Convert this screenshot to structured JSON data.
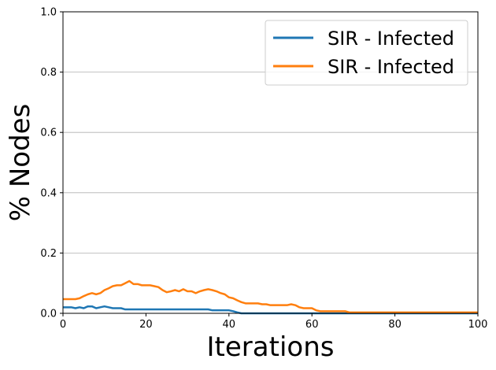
{
  "chart_data": {
    "type": "line",
    "title": "",
    "xlabel": "Iterations",
    "ylabel": "% Nodes",
    "xlim": [
      0,
      100
    ],
    "ylim": [
      0,
      1.0
    ],
    "xticks": [
      "0",
      "20",
      "40",
      "60",
      "80",
      "100"
    ],
    "yticks": [
      "0.0",
      "0.2",
      "0.4",
      "0.6",
      "0.8",
      "1.0"
    ],
    "grid": "horizontal",
    "legend_position": "top-right",
    "colors": {
      "series_1": "#1f77b4",
      "series_2": "#ff7f0e",
      "grid": "#b0b0b0"
    },
    "x": [
      0,
      1,
      2,
      3,
      4,
      5,
      6,
      7,
      8,
      9,
      10,
      11,
      12,
      13,
      14,
      15,
      16,
      17,
      18,
      19,
      20,
      21,
      22,
      23,
      24,
      25,
      26,
      27,
      28,
      29,
      30,
      31,
      32,
      33,
      34,
      35,
      36,
      37,
      38,
      39,
      40,
      41,
      42,
      43,
      44,
      45,
      46,
      47,
      48,
      49,
      50,
      51,
      52,
      53,
      54,
      55,
      56,
      57,
      58,
      59,
      60,
      61,
      62,
      63,
      64,
      65,
      66,
      67,
      68,
      69,
      70,
      71,
      72,
      73,
      74,
      75,
      76,
      77,
      78,
      79,
      80,
      81,
      82,
      83,
      84,
      85,
      86,
      87,
      88,
      89,
      90,
      91,
      92,
      93,
      94,
      95,
      96,
      97,
      98,
      99,
      100
    ],
    "series": [
      {
        "name": "SIR - Infected",
        "values": [
          0.02,
          0.02,
          0.02,
          0.017,
          0.02,
          0.017,
          0.023,
          0.023,
          0.017,
          0.02,
          0.023,
          0.02,
          0.017,
          0.017,
          0.017,
          0.013,
          0.013,
          0.013,
          0.013,
          0.013,
          0.013,
          0.013,
          0.013,
          0.013,
          0.013,
          0.013,
          0.013,
          0.013,
          0.013,
          0.013,
          0.013,
          0.013,
          0.013,
          0.013,
          0.013,
          0.013,
          0.01,
          0.01,
          0.01,
          0.01,
          0.01,
          0.007,
          0.003,
          0,
          0,
          0,
          0,
          0,
          0,
          0,
          0,
          0,
          0,
          0,
          0,
          0,
          0,
          0,
          0,
          0,
          0,
          0,
          0,
          0,
          0,
          0,
          0,
          0,
          0,
          0,
          0,
          0,
          0,
          0,
          0,
          0,
          0,
          0,
          0,
          0,
          0,
          0,
          0,
          0,
          0,
          0,
          0,
          0,
          0,
          0,
          0,
          0,
          0,
          0,
          0,
          0,
          0,
          0,
          0,
          0,
          0
        ]
      },
      {
        "name": "SIR - Infected",
        "values": [
          0.047,
          0.047,
          0.047,
          0.047,
          0.05,
          0.057,
          0.063,
          0.067,
          0.063,
          0.067,
          0.077,
          0.083,
          0.09,
          0.093,
          0.093,
          0.1,
          0.107,
          0.097,
          0.097,
          0.093,
          0.093,
          0.093,
          0.09,
          0.087,
          0.077,
          0.07,
          0.073,
          0.077,
          0.073,
          0.08,
          0.073,
          0.073,
          0.067,
          0.073,
          0.077,
          0.08,
          0.077,
          0.073,
          0.067,
          0.063,
          0.053,
          0.05,
          0.043,
          0.037,
          0.033,
          0.033,
          0.033,
          0.033,
          0.03,
          0.03,
          0.027,
          0.027,
          0.027,
          0.027,
          0.027,
          0.03,
          0.027,
          0.02,
          0.017,
          0.017,
          0.017,
          0.01,
          0.007,
          0.007,
          0.007,
          0.007,
          0.007,
          0.007,
          0.007,
          0.003,
          0.003,
          0.003,
          0.003,
          0.003,
          0.003,
          0.003,
          0.003,
          0.003,
          0.003,
          0.003,
          0.003,
          0.003,
          0.003,
          0.003,
          0.003,
          0.003,
          0.003,
          0.003,
          0.003,
          0.003,
          0.003,
          0.003,
          0.003,
          0.003,
          0.003,
          0.003,
          0.003,
          0.003,
          0.003,
          0.003,
          0.003
        ]
      }
    ]
  }
}
